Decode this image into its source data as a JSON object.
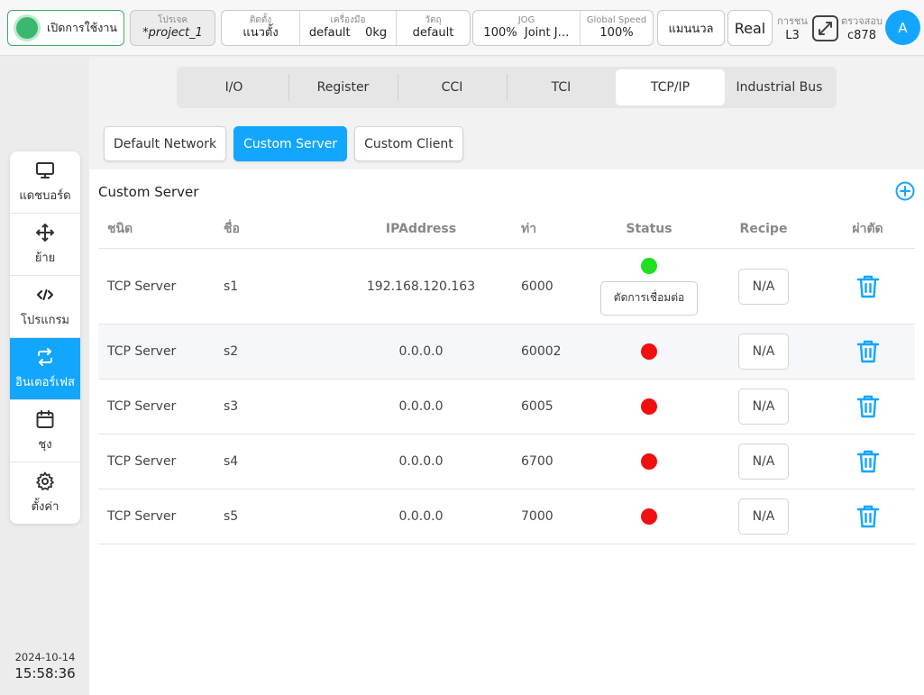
{
  "topbar": {
    "power_label": "เปิดการใช้งาน",
    "project": {
      "label": "โปรเจค",
      "value": "*project_1"
    },
    "install": {
      "label": "ติดตั้ง",
      "value": "แนวตั้ง"
    },
    "tool": {
      "label": "เครื่องมือ",
      "value": "default",
      "weight": "0kg"
    },
    "object": {
      "label": "วัตถุ",
      "value": "default"
    },
    "jog": {
      "label": "JOG",
      "percent": "100%",
      "mode": "Joint J…"
    },
    "global_speed": {
      "label": "Global Speed",
      "value": "100%"
    },
    "manual_label": "แมนนวล",
    "real_label": "Real",
    "collision": {
      "label": "การชน",
      "value": "L3"
    },
    "check": {
      "label": "ตรวจสอบ",
      "value": "c878"
    },
    "avatar_letter": "A"
  },
  "sidebar": {
    "items": [
      {
        "label": "แดชบอร์ด",
        "icon": "monitor-icon"
      },
      {
        "label": "ย้าย",
        "icon": "move-icon"
      },
      {
        "label": "โปรแกรม",
        "icon": "code-icon"
      },
      {
        "label": "อินเตอร์เฟส",
        "icon": "swap-icon",
        "active": true
      },
      {
        "label": "ชุง",
        "icon": "calendar-icon"
      },
      {
        "label": "ตั้งค่า",
        "icon": "gear-icon"
      }
    ],
    "date": "2024-10-14",
    "time": "15:58:36"
  },
  "tabs": [
    "I/O",
    "Register",
    "CCI",
    "TCI",
    "TCP/IP",
    "Industrial Bus"
  ],
  "active_tab": "TCP/IP",
  "subtabs": [
    "Default Network",
    "Custom Server",
    "Custom Client"
  ],
  "active_subtab": "Custom Server",
  "section_title": "Custom Server",
  "table": {
    "headers": {
      "type": "ชนิด",
      "name": "ชื่อ",
      "ip": "IPAddress",
      "port": "ท่า",
      "status": "Status",
      "recipe": "Recipe",
      "delete": "ผ่าตัด"
    },
    "rows": [
      {
        "type": "TCP Server",
        "name": "s1",
        "ip": "192.168.120.163",
        "port": "6000",
        "status": "connected",
        "action": "ตัดการเชื่อมต่อ",
        "recipe": "N/A"
      },
      {
        "type": "TCP Server",
        "name": "s2",
        "ip": "0.0.0.0",
        "port": "60002",
        "status": "disconnected",
        "recipe": "N/A"
      },
      {
        "type": "TCP Server",
        "name": "s3",
        "ip": "0.0.0.0",
        "port": "6005",
        "status": "disconnected",
        "recipe": "N/A"
      },
      {
        "type": "TCP Server",
        "name": "s4",
        "ip": "0.0.0.0",
        "port": "6700",
        "status": "disconnected",
        "recipe": "N/A"
      },
      {
        "type": "TCP Server",
        "name": "s5",
        "ip": "0.0.0.0",
        "port": "7000",
        "status": "disconnected",
        "recipe": "N/A"
      }
    ]
  },
  "colors": {
    "accent": "#13a6ff",
    "status_on": "#1ee01e",
    "status_off": "#f20f0f",
    "power": "#3cb86e"
  }
}
